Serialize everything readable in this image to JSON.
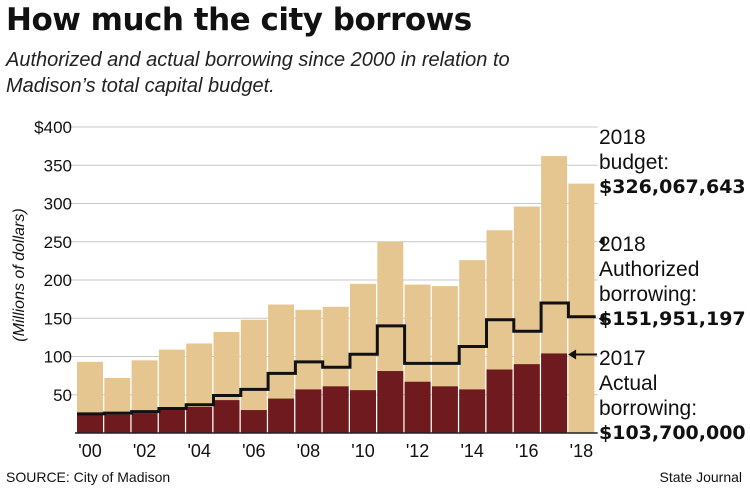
{
  "title": "How much the city borrows",
  "subtitle": "Authorized and actual borrowing since 2000 in relation to Madison’s total capital budget.",
  "source": "SOURCE: City of Madison",
  "credit": "State Journal",
  "colors": {
    "budget": "#e6c690",
    "actual": "#6e1a1e",
    "authorized_line": "#111111",
    "grid": "#c8c8c8"
  },
  "chart_data": {
    "type": "bar",
    "ylabel": "(Millions of dollars)",
    "ylim": [
      0,
      400
    ],
    "ytick_labels": [
      "$400",
      "350",
      "300",
      "250",
      "200",
      "150",
      "100",
      "50"
    ],
    "ytick_values": [
      400,
      350,
      300,
      250,
      200,
      150,
      100,
      50
    ],
    "xtick_labels": [
      "'00",
      "'02",
      "'04",
      "'06",
      "'08",
      "'10",
      "'12",
      "'14",
      "'16",
      "'18"
    ],
    "categories": [
      2000,
      2001,
      2002,
      2003,
      2004,
      2005,
      2006,
      2007,
      2008,
      2009,
      2010,
      2011,
      2012,
      2013,
      2014,
      2015,
      2016,
      2017,
      2018
    ],
    "grid": true,
    "series": [
      {
        "name": "Capital budget",
        "values": [
          93,
          72,
          95,
          109,
          117,
          132,
          148,
          168,
          161,
          165,
          195,
          250,
          194,
          192,
          226,
          265,
          296,
          362,
          326
        ]
      },
      {
        "name": "Actual borrowing",
        "values": [
          25,
          24,
          26,
          33,
          34,
          43,
          30,
          45,
          57,
          61,
          56,
          81,
          67,
          61,
          57,
          83,
          90,
          104,
          null
        ]
      },
      {
        "name": "Authorized borrowing",
        "values": [
          25,
          26,
          28,
          32,
          37,
          49,
          57,
          78,
          93,
          86,
          103,
          140,
          91,
          91,
          113,
          148,
          133,
          170,
          152
        ]
      }
    ],
    "annotations": {
      "budget_label": [
        "2018",
        "budget:"
      ],
      "budget_value": "$326,067,643",
      "authorized_label": [
        "2018",
        "Authorized",
        "borrowing:"
      ],
      "authorized_value": "$151,951,197",
      "actual_label": [
        "2017",
        "Actual",
        "borrowing:"
      ],
      "actual_value": "$103,700,000"
    }
  }
}
